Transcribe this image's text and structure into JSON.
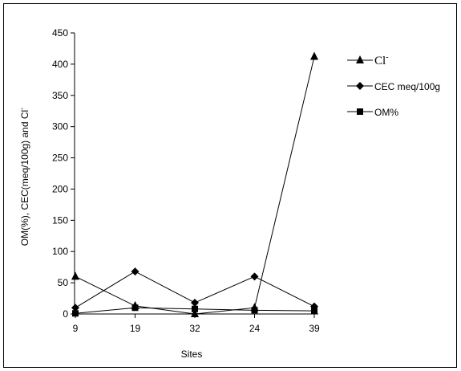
{
  "chart_data": {
    "type": "line",
    "categories": [
      "9",
      "19",
      "32",
      "24",
      "39"
    ],
    "series": [
      {
        "name": "Cl",
        "name_superscript": "-",
        "marker": "triangle",
        "values": [
          60,
          13,
          0,
          10,
          412
        ]
      },
      {
        "name": "CEC meq/100g",
        "marker": "diamond",
        "values": [
          10,
          68,
          18,
          60,
          12
        ]
      },
      {
        "name": "OM%",
        "marker": "square",
        "values": [
          1,
          10,
          8,
          6,
          5
        ]
      }
    ],
    "xlabel": "Sites",
    "ylabel": "OM(%), CEC(meq/100g) and Cl",
    "ylabel_superscript": "-",
    "ylim": [
      0,
      450
    ],
    "yticks": [
      0,
      50,
      100,
      150,
      200,
      250,
      300,
      350,
      400,
      450
    ],
    "grid": false,
    "legend_position": "right"
  }
}
